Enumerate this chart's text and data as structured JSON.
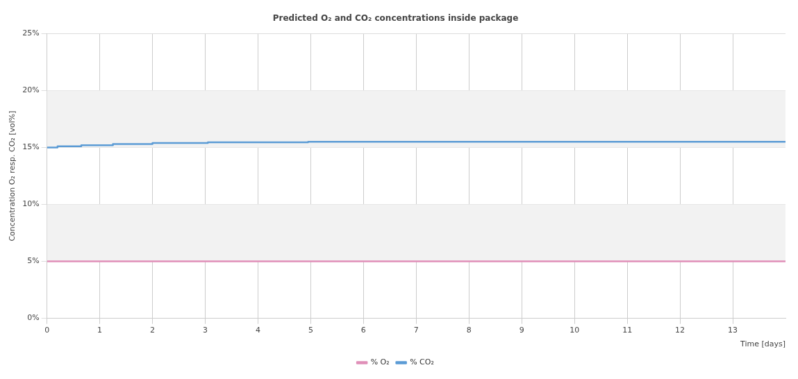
{
  "chart_data": {
    "type": "step",
    "title": "Predicted O₂ and CO₂ concentrations inside package",
    "xlabel": "Time [days]",
    "ylabel": "Concentration O₂ resp. CO₂ [vol%]",
    "xlim": [
      0,
      14
    ],
    "xticks": [
      0,
      1,
      2,
      3,
      4,
      5,
      6,
      7,
      8,
      9,
      10,
      11,
      12,
      13
    ],
    "ylim": [
      0,
      25
    ],
    "yticks": [
      {
        "value": 0,
        "label": "0%"
      },
      {
        "value": 5,
        "label": "5%"
      },
      {
        "value": 10,
        "label": "10%"
      },
      {
        "value": 15,
        "label": "15%"
      },
      {
        "value": 20,
        "label": "20%"
      },
      {
        "value": 25,
        "label": "25%"
      }
    ],
    "grid": true,
    "legend": "bottom",
    "marker": "none",
    "line_style": "solid",
    "bands": [
      {
        "axis": "y",
        "from": 5,
        "to": 10,
        "color": "#f2f2f2"
      },
      {
        "axis": "y",
        "from": 15,
        "to": 20,
        "color": "#f2f2f2"
      }
    ],
    "series": [
      {
        "name": "% O₂",
        "color": "#e08fb8",
        "x": [
          0,
          14
        ],
        "values": [
          5,
          5
        ]
      },
      {
        "name": "% CO₂",
        "color": "#5b9bd5",
        "x": [
          0,
          0.2,
          0.65,
          1.25,
          2,
          3.05,
          4.95,
          14
        ],
        "values": [
          15,
          15.1,
          15.2,
          15.3,
          15.4,
          15.45,
          15.5,
          15.5
        ]
      }
    ]
  }
}
